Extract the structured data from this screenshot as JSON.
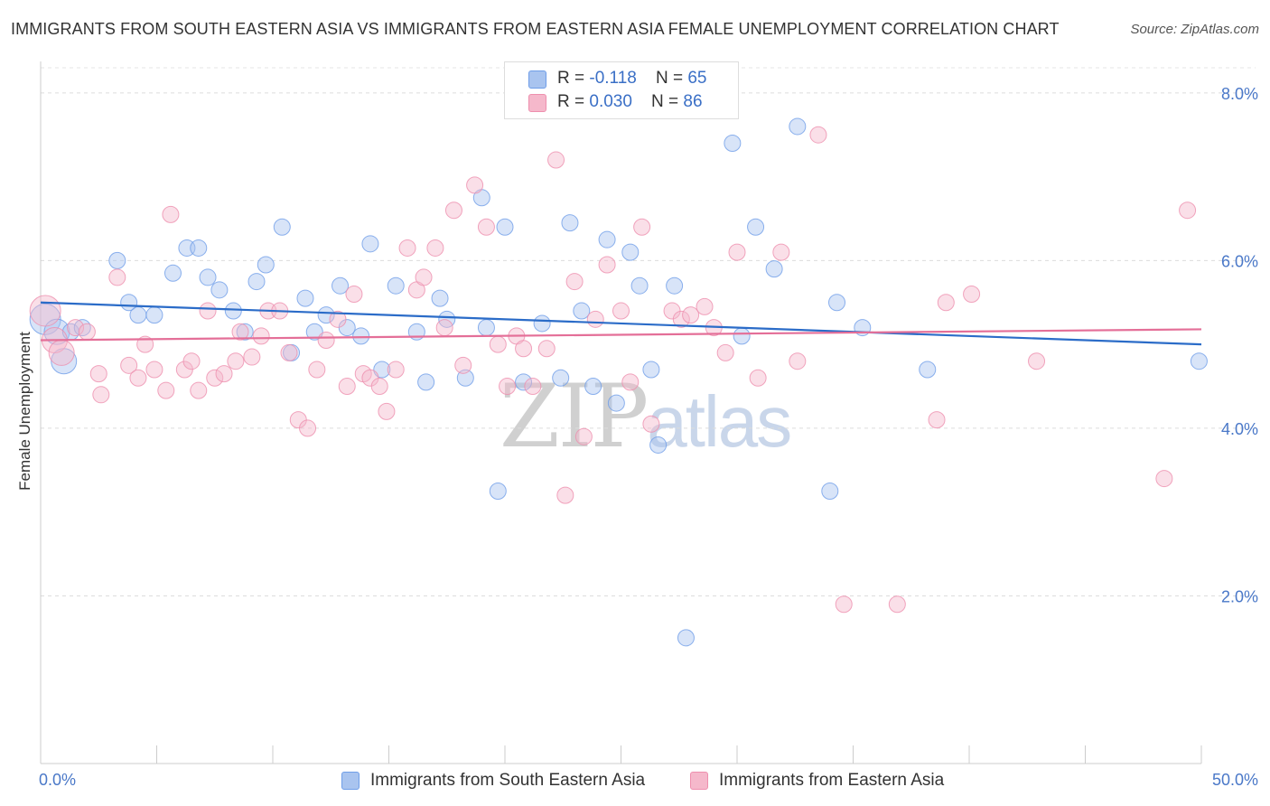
{
  "title": "IMMIGRANTS FROM SOUTH EASTERN ASIA VS IMMIGRANTS FROM EASTERN ASIA FEMALE UNEMPLOYMENT CORRELATION CHART",
  "source": "Source: ZipAtlas.com",
  "watermark": {
    "zip": "ZIP",
    "atlas": "atlas"
  },
  "legend_top": [
    {
      "r_label": "R = ",
      "r_value": "-0.118",
      "n_label": "N = ",
      "n_value": "65",
      "color": "#a9c4ef"
    },
    {
      "r_label": "R = ",
      "r_value": "0.030",
      "n_label": "N = ",
      "n_value": "86",
      "color": "#f5b8cb"
    }
  ],
  "chart_data": {
    "type": "scatter",
    "title": "IMMIGRANTS FROM SOUTH EASTERN ASIA VS IMMIGRANTS FROM EASTERN ASIA FEMALE UNEMPLOYMENT CORRELATION CHART",
    "xlabel": "",
    "ylabel": "Female Unemployment",
    "xlim": [
      0,
      50
    ],
    "ylim": [
      0,
      8.3
    ],
    "x_tick_labels": [
      "0.0%",
      "50.0%"
    ],
    "y_ticks": [
      2,
      4,
      6,
      8
    ],
    "y_tick_labels": [
      "2.0%",
      "4.0%",
      "6.0%",
      "8.0%"
    ],
    "grid": "horizontal dashed",
    "legend_placement": "bottom",
    "series": [
      {
        "name": "Immigrants from South Eastern Asia",
        "color": "#6f9ee8",
        "fill": "#a9c4ef",
        "trend": {
          "x": [
            0,
            50
          ],
          "y": [
            5.5,
            5.0
          ],
          "color": "#2b6cc8"
        },
        "points": [
          [
            0.2,
            5.3
          ],
          [
            0.7,
            5.15
          ],
          [
            1.0,
            4.8
          ],
          [
            1.3,
            5.15
          ],
          [
            1.8,
            5.2
          ],
          [
            3.3,
            6.0
          ],
          [
            3.8,
            5.5
          ],
          [
            4.2,
            5.35
          ],
          [
            4.9,
            5.35
          ],
          [
            5.7,
            5.85
          ],
          [
            6.3,
            6.15
          ],
          [
            6.8,
            6.15
          ],
          [
            7.2,
            5.8
          ],
          [
            7.7,
            5.65
          ],
          [
            8.3,
            5.4
          ],
          [
            8.8,
            5.15
          ],
          [
            9.3,
            5.75
          ],
          [
            9.7,
            5.95
          ],
          [
            10.4,
            6.4
          ],
          [
            10.8,
            4.9
          ],
          [
            11.4,
            5.55
          ],
          [
            11.8,
            5.15
          ],
          [
            12.3,
            5.35
          ],
          [
            12.9,
            5.7
          ],
          [
            13.2,
            5.2
          ],
          [
            13.8,
            5.1
          ],
          [
            14.2,
            6.2
          ],
          [
            14.7,
            4.7
          ],
          [
            15.3,
            5.7
          ],
          [
            16.2,
            5.15
          ],
          [
            16.6,
            4.55
          ],
          [
            17.2,
            5.55
          ],
          [
            17.5,
            5.3
          ],
          [
            18.3,
            4.6
          ],
          [
            19.0,
            6.75
          ],
          [
            19.2,
            5.2
          ],
          [
            19.7,
            3.25
          ],
          [
            20.0,
            6.4
          ],
          [
            20.8,
            4.55
          ],
          [
            21.6,
            5.25
          ],
          [
            22.4,
            4.6
          ],
          [
            22.8,
            6.45
          ],
          [
            23.3,
            5.4
          ],
          [
            23.8,
            4.5
          ],
          [
            24.4,
            6.25
          ],
          [
            24.8,
            4.3
          ],
          [
            25.4,
            6.1
          ],
          [
            25.8,
            5.7
          ],
          [
            26.3,
            4.7
          ],
          [
            26.6,
            3.8
          ],
          [
            27.3,
            5.7
          ],
          [
            27.8,
            1.5
          ],
          [
            29.8,
            7.4
          ],
          [
            30.2,
            5.1
          ],
          [
            30.8,
            6.4
          ],
          [
            31.6,
            5.9
          ],
          [
            32.6,
            7.6
          ],
          [
            34.0,
            3.25
          ],
          [
            34.3,
            5.5
          ],
          [
            35.4,
            5.2
          ],
          [
            38.2,
            4.7
          ],
          [
            49.9,
            4.8
          ]
        ]
      },
      {
        "name": "Immigrants from Eastern Asia",
        "color": "#ee8fae",
        "fill": "#f5b8cb",
        "trend": {
          "x": [
            0,
            50
          ],
          "y": [
            5.05,
            5.18
          ],
          "color": "#e46f98"
        },
        "points": [
          [
            0.2,
            5.4
          ],
          [
            0.6,
            5.05
          ],
          [
            0.9,
            4.9
          ],
          [
            1.5,
            5.2
          ],
          [
            2.0,
            5.15
          ],
          [
            2.5,
            4.65
          ],
          [
            2.6,
            4.4
          ],
          [
            3.3,
            5.8
          ],
          [
            3.8,
            4.75
          ],
          [
            4.2,
            4.6
          ],
          [
            4.5,
            5.0
          ],
          [
            4.9,
            4.7
          ],
          [
            5.4,
            4.45
          ],
          [
            5.6,
            6.55
          ],
          [
            6.2,
            4.7
          ],
          [
            6.5,
            4.8
          ],
          [
            6.8,
            4.45
          ],
          [
            7.2,
            5.4
          ],
          [
            7.5,
            4.6
          ],
          [
            7.9,
            4.65
          ],
          [
            8.4,
            4.8
          ],
          [
            8.6,
            5.15
          ],
          [
            9.1,
            4.85
          ],
          [
            9.5,
            5.1
          ],
          [
            9.8,
            5.4
          ],
          [
            10.3,
            5.4
          ],
          [
            10.7,
            4.9
          ],
          [
            11.1,
            4.1
          ],
          [
            11.5,
            4.0
          ],
          [
            11.9,
            4.7
          ],
          [
            12.3,
            5.05
          ],
          [
            12.8,
            5.3
          ],
          [
            13.2,
            4.5
          ],
          [
            13.5,
            5.6
          ],
          [
            13.9,
            4.65
          ],
          [
            14.2,
            4.6
          ],
          [
            14.6,
            4.5
          ],
          [
            14.9,
            4.2
          ],
          [
            15.3,
            4.7
          ],
          [
            15.8,
            6.15
          ],
          [
            16.2,
            5.65
          ],
          [
            16.5,
            5.8
          ],
          [
            17.0,
            6.15
          ],
          [
            17.4,
            5.2
          ],
          [
            17.8,
            6.6
          ],
          [
            18.2,
            4.75
          ],
          [
            18.7,
            6.9
          ],
          [
            19.2,
            6.4
          ],
          [
            19.7,
            5.0
          ],
          [
            20.1,
            4.5
          ],
          [
            20.5,
            5.1
          ],
          [
            20.8,
            4.95
          ],
          [
            21.2,
            4.5
          ],
          [
            21.8,
            4.95
          ],
          [
            22.2,
            7.2
          ],
          [
            22.6,
            3.2
          ],
          [
            23.0,
            5.75
          ],
          [
            23.4,
            3.9
          ],
          [
            23.9,
            5.3
          ],
          [
            24.4,
            5.95
          ],
          [
            25.0,
            5.4
          ],
          [
            25.4,
            4.55
          ],
          [
            25.9,
            6.4
          ],
          [
            26.3,
            4.05
          ],
          [
            27.2,
            5.4
          ],
          [
            27.6,
            5.3
          ],
          [
            28.0,
            5.35
          ],
          [
            28.6,
            5.45
          ],
          [
            29.0,
            5.2
          ],
          [
            29.5,
            4.9
          ],
          [
            30.0,
            6.1
          ],
          [
            30.9,
            4.6
          ],
          [
            31.9,
            6.1
          ],
          [
            32.6,
            4.8
          ],
          [
            33.5,
            7.5
          ],
          [
            34.6,
            1.9
          ],
          [
            36.9,
            1.9
          ],
          [
            38.6,
            4.1
          ],
          [
            39.0,
            5.5
          ],
          [
            40.1,
            5.6
          ],
          [
            42.9,
            4.8
          ],
          [
            48.4,
            3.4
          ],
          [
            49.4,
            6.6
          ]
        ]
      }
    ]
  }
}
